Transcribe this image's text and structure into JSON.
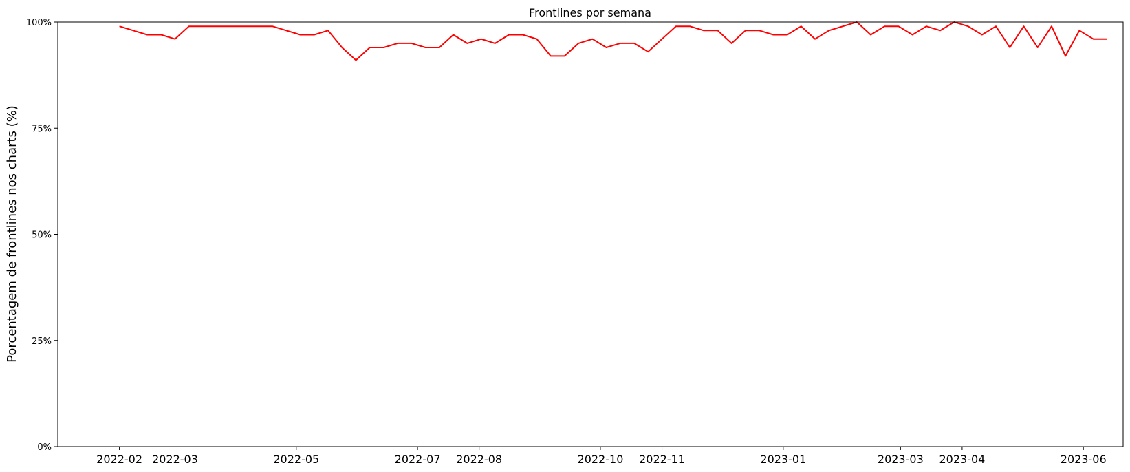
{
  "chart_data": {
    "type": "line",
    "title": "Frontlines por semana",
    "xlabel": "",
    "ylabel": "Porcentagem de frontlines nos charts (%)",
    "ylim": [
      0,
      100
    ],
    "xlim": [
      "2022-01-01",
      "2023-06-21"
    ],
    "grid": false,
    "legend": "none",
    "color": "#ff0000",
    "yticks": [
      0,
      25,
      50,
      75,
      100
    ],
    "ytick_labels": [
      "0%",
      "25%",
      "50%",
      "75%",
      "100%"
    ],
    "xticks": [
      "2022-02-01",
      "2022-03-01",
      "2022-05-01",
      "2022-07-01",
      "2022-08-01",
      "2022-10-01",
      "2022-11-01",
      "2023-01-01",
      "2023-03-01",
      "2023-04-01",
      "2023-06-01"
    ],
    "xtick_labels": [
      "2022-02",
      "2022-03",
      "2022-05",
      "2022-07",
      "2022-08",
      "2022-10",
      "2022-11",
      "2023-01",
      "2023-03",
      "2023-04",
      "2023-06"
    ],
    "series": [
      {
        "x": [
          "2022-02-01",
          "2022-02-08",
          "2022-02-15",
          "2022-02-22",
          "2022-03-01",
          "2022-03-08",
          "2022-03-15",
          "2022-03-22",
          "2022-03-29",
          "2022-04-05",
          "2022-04-12",
          "2022-04-19",
          "2022-04-26",
          "2022-05-03",
          "2022-05-10",
          "2022-05-17",
          "2022-05-24",
          "2022-05-31",
          "2022-06-07",
          "2022-06-14",
          "2022-06-21",
          "2022-06-28",
          "2022-07-05",
          "2022-07-12",
          "2022-07-19",
          "2022-07-26",
          "2022-08-02",
          "2022-08-09",
          "2022-08-16",
          "2022-08-23",
          "2022-08-30",
          "2022-09-06",
          "2022-09-13",
          "2022-09-20",
          "2022-09-27",
          "2022-10-04",
          "2022-10-11",
          "2022-10-18",
          "2022-10-25",
          "2022-11-01",
          "2022-11-08",
          "2022-11-15",
          "2022-11-22",
          "2022-11-29",
          "2022-12-06",
          "2022-12-13",
          "2022-12-20",
          "2022-12-27",
          "2023-01-03",
          "2023-01-10",
          "2023-01-17",
          "2023-01-24",
          "2023-01-31",
          "2023-02-07",
          "2023-02-14",
          "2023-02-21",
          "2023-02-28",
          "2023-03-07",
          "2023-03-14",
          "2023-03-21",
          "2023-03-28",
          "2023-04-04",
          "2023-04-11",
          "2023-04-18",
          "2023-04-25",
          "2023-05-02",
          "2023-05-09",
          "2023-05-16",
          "2023-05-23",
          "2023-05-30",
          "2023-06-06",
          "2023-06-13"
        ],
        "values": [
          99,
          98,
          97,
          97,
          96,
          99,
          99,
          99,
          99,
          99,
          99,
          99,
          98,
          97,
          97,
          98,
          94,
          91,
          94,
          94,
          95,
          95,
          94,
          94,
          97,
          95,
          96,
          95,
          97,
          97,
          96,
          92,
          92,
          95,
          96,
          94,
          95,
          95,
          93,
          96,
          99,
          99,
          98,
          98,
          95,
          98,
          98,
          97,
          97,
          99,
          96,
          98,
          99,
          100,
          97,
          99,
          99,
          97,
          99,
          98,
          100,
          99,
          97,
          99,
          94,
          99,
          94,
          99,
          92,
          98,
          96,
          96
        ]
      }
    ]
  }
}
